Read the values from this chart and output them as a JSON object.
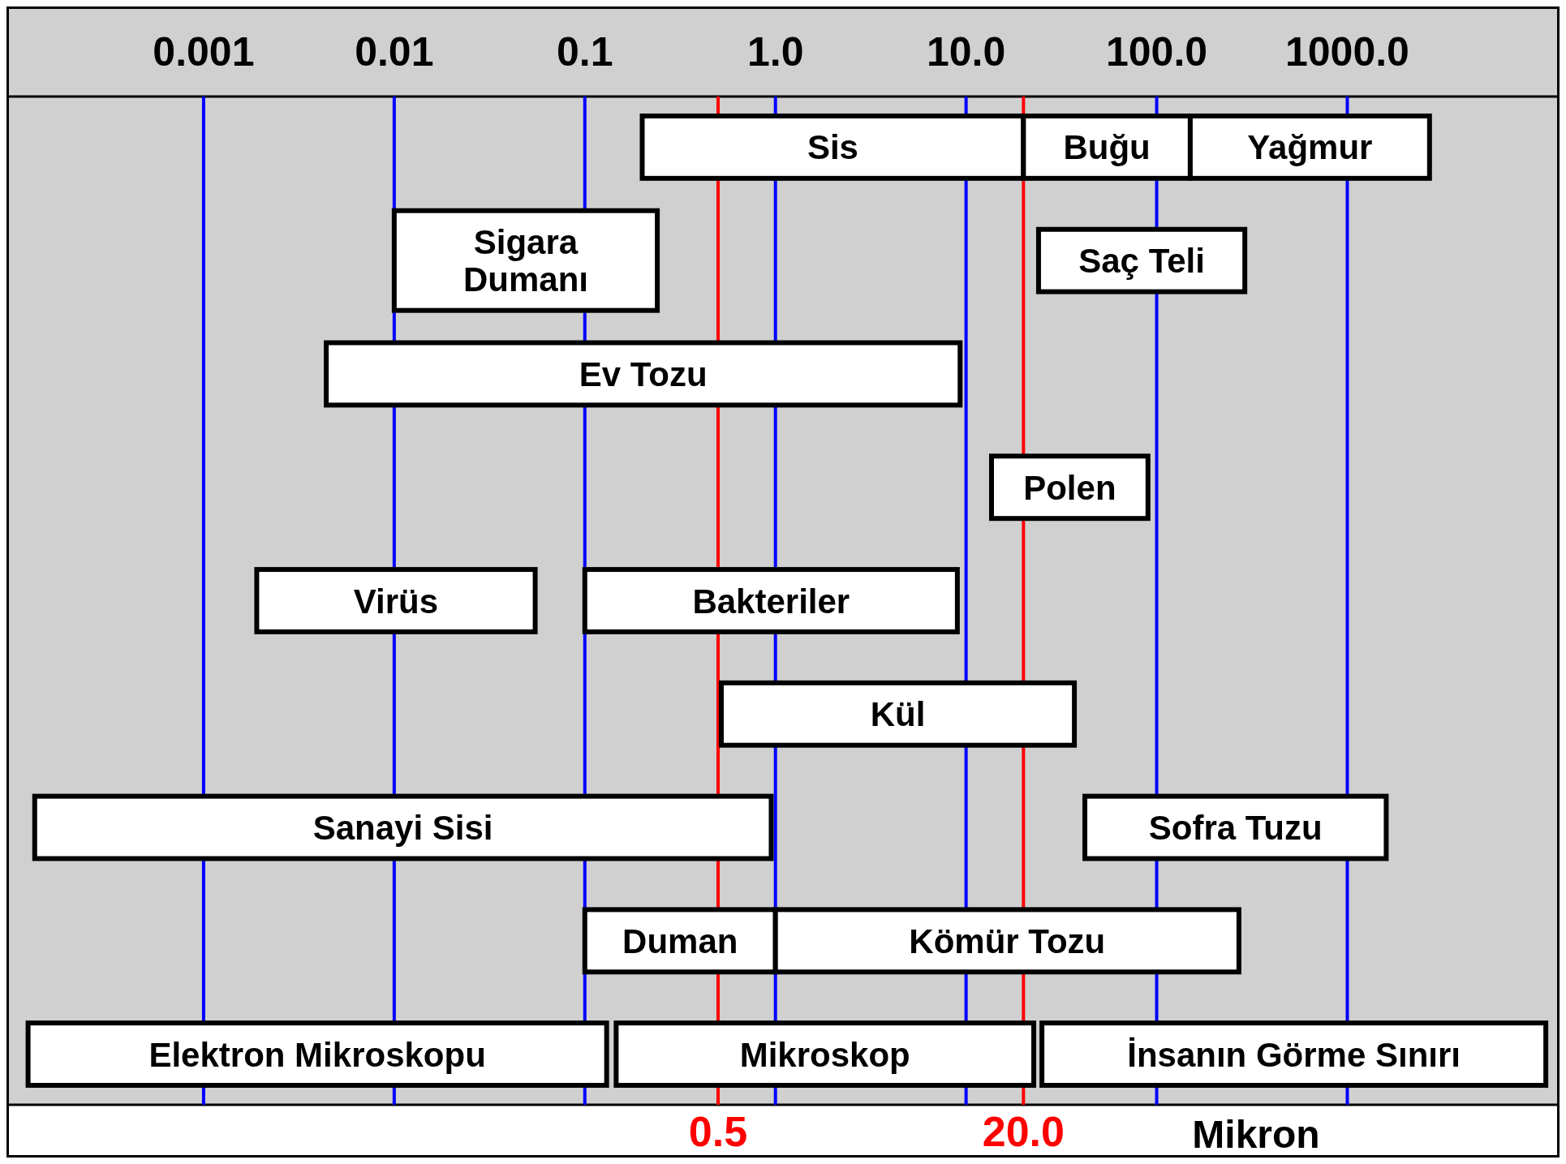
{
  "chart_data": {
    "type": "bar",
    "orientation": "horizontal",
    "categories": [
      null,
      null,
      null,
      null,
      null,
      null,
      null,
      null,
      null
    ],
    "xlabel": "Mikron",
    "log": "x",
    "grid": "x",
    "tick_labels": "x",
    "xlim": [
      0.0001,
      12000
    ],
    "xticks": [
      0.001,
      0.01,
      0.1,
      {
        "value": 1,
        "label": "1.0"
      },
      {
        "value": 10,
        "label": "10.0"
      },
      {
        "value": 100,
        "label": "100.0"
      },
      {
        "value": 1000,
        "label": "1000.0"
      }
    ],
    "ref_lines": [
      {
        "axis": "x",
        "value": 0.5,
        "label": "0.5",
        "color": "#ff0000"
      },
      {
        "axis": "x",
        "value": 20,
        "label": "20.0",
        "color": "#ff0000"
      }
    ],
    "series": [
      {
        "name": "Sis",
        "color": "#ffffff",
        "values": [
          19.8,
          null,
          null,
          null,
          null,
          null,
          null,
          null,
          null
        ],
        "base": [
          0.2,
          null,
          null,
          null,
          null,
          null,
          null,
          null,
          null
        ]
      },
      {
        "name": "Buğu",
        "color": "#ffffff",
        "values": [
          130,
          null,
          null,
          null,
          null,
          null,
          null,
          null,
          null
        ],
        "base": [
          20,
          null,
          null,
          null,
          null,
          null,
          null,
          null,
          null
        ]
      },
      {
        "name": "Yağmur",
        "color": "#ffffff",
        "values": [
          2550,
          null,
          null,
          null,
          null,
          null,
          null,
          null,
          null
        ],
        "base": [
          150,
          null,
          null,
          null,
          null,
          null,
          null,
          null,
          null
        ]
      },
      {
        "name": "Sigara Dumanı",
        "color": "#ffffff",
        "values": [
          null,
          0.23,
          null,
          null,
          null,
          null,
          null,
          null,
          null
        ],
        "base": [
          null,
          0.01,
          null,
          null,
          null,
          null,
          null,
          null,
          null
        ]
      },
      {
        "name": "Saç Teli",
        "color": "#ffffff",
        "values": [
          null,
          266,
          null,
          null,
          null,
          null,
          null,
          null,
          null
        ],
        "base": [
          null,
          24,
          null,
          null,
          null,
          null,
          null,
          null,
          null
        ]
      },
      {
        "name": "Ev Tozu",
        "color": "#ffffff",
        "values": [
          null,
          null,
          9.3,
          null,
          null,
          null,
          null,
          null,
          null
        ],
        "base": [
          null,
          null,
          0.0044,
          null,
          null,
          null,
          null,
          null,
          null
        ]
      },
      {
        "name": "Polen",
        "color": "#ffffff",
        "values": [
          null,
          null,
          null,
          76.4,
          null,
          null,
          null,
          null,
          null
        ],
        "base": [
          null,
          null,
          null,
          13.6,
          null,
          null,
          null,
          null,
          null
        ]
      },
      {
        "name": "Virüs",
        "color": "#ffffff",
        "values": [
          null,
          null,
          null,
          null,
          0.053,
          null,
          null,
          null,
          null
        ],
        "base": [
          null,
          null,
          null,
          null,
          0.0019,
          null,
          null,
          null,
          null
        ]
      },
      {
        "name": "Bakteriler",
        "color": "#ffffff",
        "values": [
          null,
          null,
          null,
          null,
          8.9,
          null,
          null,
          null,
          null
        ],
        "base": [
          null,
          null,
          null,
          null,
          0.1,
          null,
          null,
          null,
          null
        ]
      },
      {
        "name": "Kül",
        "color": "#ffffff",
        "values": [
          null,
          null,
          null,
          null,
          null,
          36.48,
          null,
          null,
          null
        ],
        "base": [
          null,
          null,
          null,
          null,
          null,
          0.52,
          null,
          null,
          null
        ]
      },
      {
        "name": "Sanayi Sisi",
        "color": "#ffffff",
        "values": [
          null,
          null,
          null,
          null,
          null,
          null,
          0.95,
          null,
          null
        ],
        "base": [
          null,
          null,
          null,
          null,
          null,
          null,
          0.00013,
          null,
          null
        ]
      },
      {
        "name": "Sofra Tuzu",
        "color": "#ffffff",
        "values": [
          null,
          null,
          null,
          null,
          null,
          null,
          1558,
          null,
          null
        ],
        "base": [
          null,
          null,
          null,
          null,
          null,
          null,
          42,
          null,
          null
        ]
      },
      {
        "name": "Duman",
        "color": "#ffffff",
        "values": [
          null,
          null,
          null,
          null,
          null,
          null,
          null,
          0.9,
          null
        ],
        "base": [
          null,
          null,
          null,
          null,
          null,
          null,
          null,
          0.1,
          null
        ]
      },
      {
        "name": "Kömür Tozu",
        "color": "#ffffff",
        "values": [
          null,
          null,
          null,
          null,
          null,
          null,
          null,
          269,
          null
        ],
        "base": [
          null,
          null,
          null,
          null,
          null,
          null,
          null,
          1,
          null
        ]
      },
      {
        "name": "Elektron Mikroskopu",
        "color": "#ffffff",
        "values": [
          null,
          null,
          null,
          null,
          null,
          null,
          null,
          null,
          0.13
        ],
        "base": [
          null,
          null,
          null,
          null,
          null,
          null,
          null,
          null,
          0.00012
        ]
      },
      {
        "name": "Mikroskop",
        "color": "#ffffff",
        "values": [
          null,
          null,
          null,
          null,
          null,
          null,
          null,
          null,
          22.5
        ],
        "base": [
          null,
          null,
          null,
          null,
          null,
          null,
          null,
          null,
          0.146
        ]
      },
      {
        "name": "İnsanın Görme Sınırı",
        "color": "#ffffff",
        "values": [
          null,
          null,
          null,
          null,
          null,
          null,
          null,
          null,
          10975
        ],
        "base": [
          null,
          null,
          null,
          null,
          null,
          null,
          null,
          null,
          25
        ]
      }
    ]
  }
}
